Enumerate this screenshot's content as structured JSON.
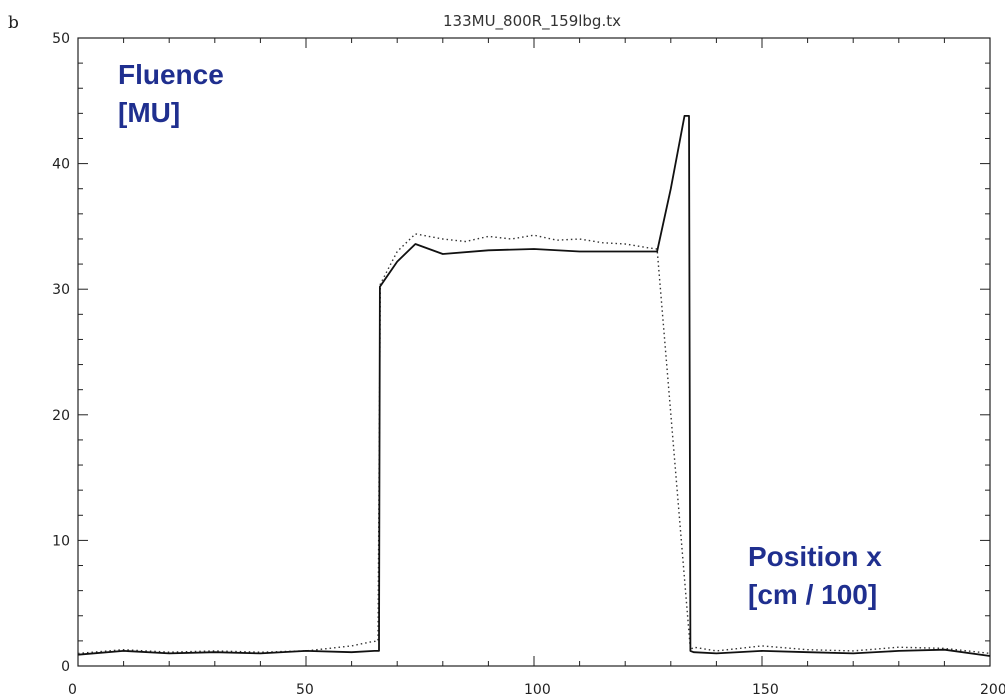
{
  "chart_data": {
    "type": "line",
    "panel_label": "b",
    "title": "133MU_800R_159lbg.tx",
    "xlim": [
      0,
      200
    ],
    "ylim": [
      0,
      50
    ],
    "x_ticks": [
      0,
      50,
      100,
      150,
      200
    ],
    "y_ticks": [
      0,
      10,
      20,
      30,
      40,
      50
    ],
    "x_tick_labels": [
      "0",
      "50",
      "100",
      "150",
      "200"
    ],
    "y_tick_labels": [
      "0",
      "10",
      "20",
      "30",
      "40",
      "50"
    ],
    "grid": false,
    "annotations": [
      {
        "lines": [
          "Fluence",
          "[MU]"
        ],
        "placement": "top-left",
        "color": "#1f2f8f"
      },
      {
        "lines": [
          "Position x",
          "[cm / 100]"
        ],
        "placement": "bottom-right",
        "color": "#1f2f8f"
      }
    ],
    "series": [
      {
        "style": "solid",
        "color": "#111111",
        "x": [
          0,
          10,
          20,
          30,
          40,
          50,
          60,
          65,
          66,
          66.2,
          70,
          74,
          80,
          90,
          100,
          110,
          120,
          127,
          130,
          133,
          134,
          134.3,
          135,
          140,
          150,
          160,
          170,
          180,
          190,
          200
        ],
        "y": [
          0.9,
          1.2,
          1.0,
          1.1,
          1.0,
          1.2,
          1.1,
          1.2,
          1.2,
          30.2,
          32.2,
          33.6,
          32.8,
          33.1,
          33.2,
          33.0,
          33.0,
          33.0,
          38.0,
          43.8,
          43.8,
          1.2,
          1.1,
          1.0,
          1.2,
          1.1,
          1.0,
          1.2,
          1.3,
          0.8
        ]
      },
      {
        "style": "dotted",
        "color": "#333333",
        "x": [
          0,
          10,
          20,
          30,
          40,
          50,
          55,
          60,
          64,
          65.8,
          66.3,
          70,
          74,
          80,
          85,
          90,
          95,
          100,
          105,
          110,
          115,
          120,
          125,
          127,
          134.3,
          135,
          140,
          150,
          160,
          170,
          180,
          190,
          200
        ],
        "y": [
          1.0,
          1.3,
          1.1,
          1.2,
          1.1,
          1.2,
          1.4,
          1.6,
          1.9,
          2.0,
          30.4,
          33.0,
          34.4,
          34.0,
          33.8,
          34.2,
          34.0,
          34.3,
          33.9,
          34.0,
          33.7,
          33.6,
          33.3,
          33.2,
          1.3,
          1.5,
          1.2,
          1.6,
          1.3,
          1.2,
          1.5,
          1.4,
          1.0
        ]
      }
    ]
  }
}
